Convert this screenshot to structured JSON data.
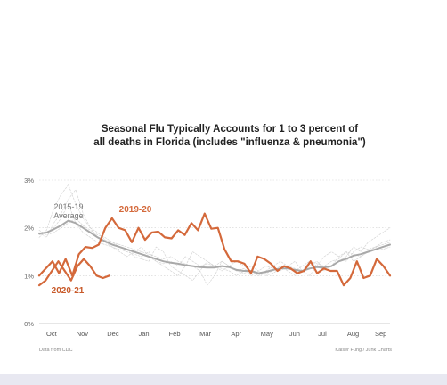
{
  "chart_data": {
    "type": "line",
    "title_lines": [
      "Seasonal Flu Typically Accounts for 1 to 3 percent of",
      "all deaths in Florida (includes \"influenza & pneumonia\")"
    ],
    "xlabel": "",
    "ylabel": "",
    "x_unit": "week of flu season (Oct to Sep)",
    "x_range": [
      0,
      50
    ],
    "ylim": [
      0,
      3
    ],
    "y_ticks": [
      {
        "value": 0,
        "label": "0%"
      },
      {
        "value": 1,
        "label": "1%"
      },
      {
        "value": 2,
        "label": "2%"
      },
      {
        "value": 3,
        "label": "3%"
      }
    ],
    "x_ticks": [
      {
        "x": 2,
        "label": "Oct"
      },
      {
        "x": 7,
        "label": "Nov"
      },
      {
        "x": 12,
        "label": "Dec"
      },
      {
        "x": 17,
        "label": "Jan"
      },
      {
        "x": 22,
        "label": "Feb"
      },
      {
        "x": 27,
        "label": "Mar"
      },
      {
        "x": 32,
        "label": "Apr"
      },
      {
        "x": 37,
        "label": "May"
      },
      {
        "x": 41.5,
        "label": "Jun"
      },
      {
        "x": 46,
        "label": "Jul"
      },
      {
        "x": 51,
        "label": "Aug"
      },
      {
        "x": 55.5,
        "label": "Sep"
      }
    ],
    "x_tick_domain": [
      0,
      57
    ],
    "grid": "horizontal dotted",
    "series": [
      {
        "key": "season_a",
        "role": "background",
        "color": "#cfcfcf",
        "values": [
          1.85,
          1.9,
          2.0,
          2.2,
          2.5,
          2.1,
          1.9,
          1.8,
          1.7,
          1.65,
          1.6,
          1.55,
          1.5,
          1.45,
          1.4,
          1.5,
          1.3,
          1.25,
          1.3,
          1.2,
          1.4,
          1.3,
          1.2,
          1.25,
          1.2,
          1.3,
          1.2,
          1.1,
          1.05,
          1.1,
          1.0,
          1.05,
          1.1,
          1.2,
          1.1,
          1.0,
          1.1,
          1.2,
          1.3,
          1.15,
          1.2,
          1.3,
          1.4,
          1.6,
          1.5,
          1.7,
          1.8,
          1.9,
          2.0
        ]
      },
      {
        "key": "season_b",
        "role": "background",
        "color": "#cfcfcf",
        "values": [
          1.8,
          1.95,
          2.4,
          2.7,
          2.9,
          2.5,
          2.2,
          2.0,
          1.8,
          1.7,
          1.6,
          1.5,
          1.4,
          1.5,
          1.6,
          1.4,
          1.3,
          1.2,
          1.1,
          1.0,
          1.2,
          1.5,
          1.4,
          1.3,
          1.2,
          1.1,
          1.2,
          1.3,
          1.2,
          1.1,
          1.0,
          1.1,
          1.2,
          1.3,
          1.2,
          1.1,
          1.2,
          1.3,
          1.25,
          1.2,
          1.3,
          1.35,
          1.5,
          1.45,
          1.4,
          1.5,
          1.6,
          1.65,
          1.7
        ]
      },
      {
        "key": "season_c",
        "role": "background",
        "color": "#cfcfcf",
        "values": [
          1.9,
          1.8,
          2.1,
          2.3,
          2.6,
          2.8,
          2.3,
          2.0,
          1.9,
          1.75,
          1.7,
          1.6,
          1.55,
          1.4,
          1.35,
          1.3,
          1.6,
          1.5,
          1.2,
          1.1,
          1.0,
          0.9,
          1.1,
          1.3,
          1.2,
          1.15,
          1.1,
          1.0,
          1.1,
          1.2,
          1.1,
          1.0,
          1.05,
          1.15,
          1.2,
          1.3,
          1.1,
          1.0,
          1.2,
          1.4,
          1.5,
          1.4,
          1.3,
          1.5,
          1.6,
          1.55,
          1.6,
          1.7,
          1.75
        ]
      },
      {
        "key": "season_d",
        "role": "background",
        "color": "#cfcfcf",
        "values": [
          1.95,
          1.85,
          1.9,
          2.0,
          2.1,
          2.2,
          2.05,
          1.95,
          1.85,
          1.8,
          1.7,
          1.65,
          1.6,
          1.55,
          1.5,
          1.45,
          1.4,
          1.35,
          1.4,
          1.3,
          1.25,
          1.2,
          1.1,
          0.8,
          1.0,
          1.3,
          1.2,
          1.1,
          1.15,
          1.0,
          1.1,
          1.2,
          1.15,
          1.1,
          1.2,
          1.15,
          1.1,
          1.3,
          1.2,
          1.1,
          1.2,
          1.4,
          1.5,
          1.3,
          1.4,
          1.5,
          1.6,
          1.55,
          1.6
        ]
      },
      {
        "key": "average",
        "label": "2015-19 Average",
        "color": "#a9a9a9",
        "values": [
          1.88,
          1.9,
          1.97,
          2.05,
          2.15,
          2.1,
          2.0,
          1.9,
          1.8,
          1.72,
          1.65,
          1.6,
          1.55,
          1.5,
          1.45,
          1.4,
          1.35,
          1.3,
          1.27,
          1.25,
          1.22,
          1.2,
          1.18,
          1.17,
          1.17,
          1.2,
          1.18,
          1.12,
          1.1,
          1.1,
          1.05,
          1.08,
          1.12,
          1.15,
          1.15,
          1.12,
          1.1,
          1.15,
          1.18,
          1.17,
          1.2,
          1.3,
          1.35,
          1.42,
          1.45,
          1.5,
          1.55,
          1.6,
          1.65
        ]
      },
      {
        "key": "2019_20",
        "label": "2019-20",
        "color": "#d4693b",
        "values": [
          1.0,
          1.15,
          1.3,
          1.05,
          1.35,
          1.0,
          1.45,
          1.6,
          1.58,
          1.65,
          2.0,
          2.2,
          2.0,
          1.95,
          1.7,
          2.0,
          1.75,
          1.9,
          1.92,
          1.8,
          1.78,
          1.95,
          1.85,
          2.1,
          1.95,
          2.3,
          1.98,
          2.0,
          1.55,
          1.3,
          1.3,
          1.25,
          1.05,
          1.4,
          1.35,
          1.25,
          1.1,
          1.2,
          1.15,
          1.05,
          1.1,
          1.3,
          1.05,
          1.15,
          1.1,
          1.1,
          0.8,
          0.95,
          1.3,
          0.95,
          1.0,
          1.35,
          1.2,
          1.0
        ]
      },
      {
        "key": "2020_21",
        "label": "2020-21",
        "color": "#d4693b",
        "values": [
          0.8,
          0.9,
          1.1,
          1.3,
          1.1,
          0.9,
          1.2,
          1.35,
          1.2,
          1.0,
          0.95,
          1.0
        ]
      }
    ],
    "annotations": [
      {
        "text": "2015-19",
        "target": "average"
      },
      {
        "text": "Average",
        "target": "average"
      },
      {
        "text": "2019-20",
        "target": "2019_20"
      },
      {
        "text": "2020-21",
        "target": "2020_21"
      }
    ],
    "source": "Data from CDC",
    "credit": "Kaiser Fung / Junk Charts"
  }
}
